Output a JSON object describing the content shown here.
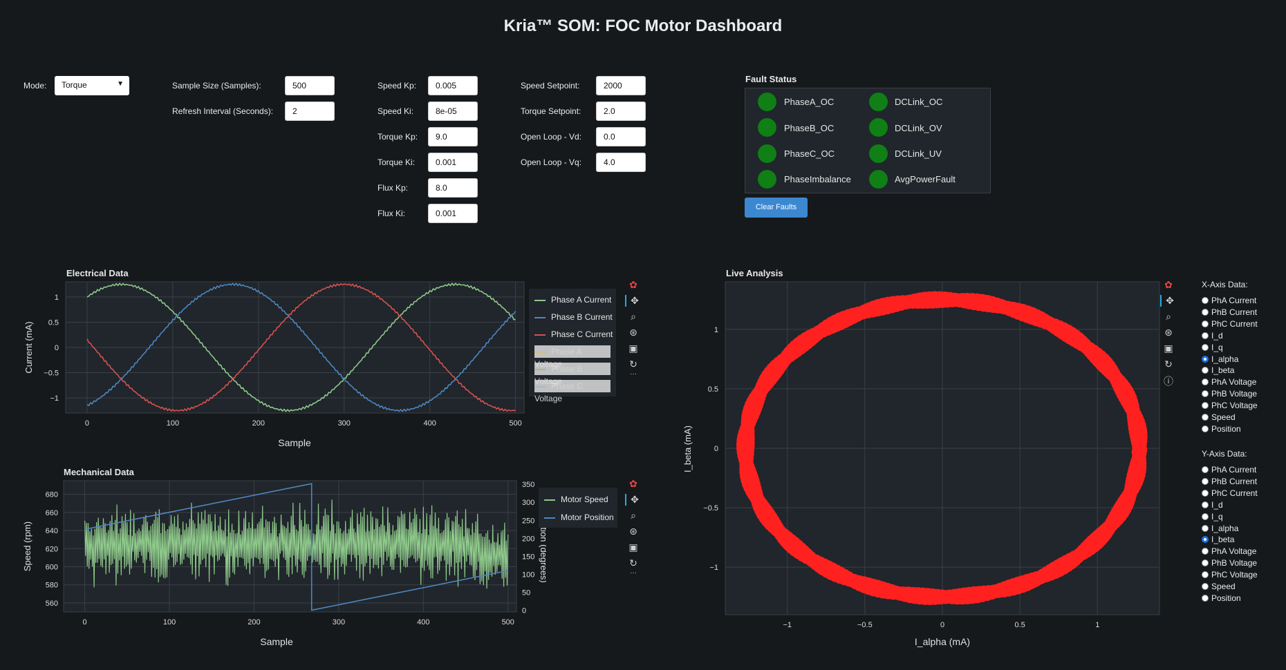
{
  "app": {
    "title": "Kria™ SOM: FOC Motor Dashboard"
  },
  "controls": {
    "mode": {
      "label": "Mode:",
      "value": "Torque"
    },
    "sample_size": {
      "label": "Sample Size (Samples):",
      "value": "500"
    },
    "refresh_interval": {
      "label": "Refresh Interval (Seconds):",
      "value": "2"
    },
    "speed_kp": {
      "label": "Speed Kp:",
      "value": "0.005"
    },
    "speed_ki": {
      "label": "Speed Ki:",
      "value": "8e-05"
    },
    "torque_kp": {
      "label": "Torque Kp:",
      "value": "9.0"
    },
    "torque_ki": {
      "label": "Torque Ki:",
      "value": "0.001"
    },
    "flux_kp": {
      "label": "Flux Kp:",
      "value": "8.0"
    },
    "flux_ki": {
      "label": "Flux Ki:",
      "value": "0.001"
    },
    "speed_setpoint": {
      "label": "Speed Setpoint:",
      "value": "2000"
    },
    "torque_setpoint": {
      "label": "Torque Setpoint:",
      "value": "2.0"
    },
    "open_loop_vd": {
      "label": "Open Loop - Vd:",
      "value": "0.0"
    },
    "open_loop_vq": {
      "label": "Open Loop - Vq:",
      "value": "4.0"
    }
  },
  "faults": {
    "title": "Fault Status",
    "items": [
      "PhaseA_OC",
      "DCLink_OC",
      "PhaseB_OC",
      "DCLink_OV",
      "PhaseC_OC",
      "DCLink_UV",
      "PhaseImbalance",
      "AvgPowerFault"
    ],
    "status_color": "#0f7f16",
    "clear_label": "Clear Faults"
  },
  "panels": {
    "electrical": "Electrical Data",
    "mechanical": "Mechanical Data",
    "live": "Live Analysis"
  },
  "colors": {
    "green": "#8fc98b",
    "blue": "#4f86c0",
    "red": "#d95050",
    "scatter": "#ff2020"
  },
  "chart_data": [
    {
      "type": "line",
      "title": "Electrical Data",
      "xlabel": "Sample",
      "ylabel": "Current (mA)",
      "xlim": [
        -25,
        510
      ],
      "ylim": [
        -1.3,
        1.3
      ],
      "xticks": [
        "0",
        "100",
        "200",
        "300",
        "400",
        "500"
      ],
      "yticks": [
        "−1",
        "−0.5",
        "0",
        "0.5",
        "1"
      ],
      "sine": {
        "amplitude": 1.25,
        "period_samples": 390,
        "phase_a_peak_sample": 40
      },
      "series": [
        {
          "name": "Phase A Current",
          "phase_offset_deg": 0
        },
        {
          "name": "Phase B Current",
          "phase_offset_deg": -120
        },
        {
          "name": "Phase C Current",
          "phase_offset_deg": 120
        },
        {
          "name": "Phase A Voltage",
          "muted": true
        },
        {
          "name": "Phase B Voltage",
          "muted": true
        },
        {
          "name": "Phase C Voltage",
          "muted": true
        }
      ]
    },
    {
      "type": "line",
      "title": "Mechanical Data",
      "xlabel": "Sample",
      "ylabel": "Speed (rpm)",
      "y2label": "Position (degrees)",
      "xlim": [
        -25,
        510
      ],
      "ylim": [
        550,
        695
      ],
      "y2lim": [
        -5,
        360
      ],
      "xticks": [
        "0",
        "100",
        "200",
        "300",
        "400",
        "500"
      ],
      "yticks": [
        "560",
        "580",
        "600",
        "620",
        "640",
        "660",
        "680"
      ],
      "y2ticks": [
        "0",
        "50",
        "100",
        "150",
        "200",
        "250",
        "300",
        "350"
      ],
      "series": [
        {
          "name": "Motor Speed",
          "mean_rpm": 625,
          "noise_rpm": 30
        },
        {
          "name": "Motor Position",
          "points": [
            [
              0,
              225
            ],
            [
              268,
              352
            ],
            [
              268,
              0
            ],
            [
              500,
              110
            ]
          ]
        }
      ]
    },
    {
      "type": "scatter",
      "title": "Live Analysis",
      "xlabel": "I_alpha (mA)",
      "ylabel": "I_beta (mA)",
      "xlim": [
        -1.4,
        1.4
      ],
      "ylim": [
        -1.4,
        1.4
      ],
      "xticks": [
        "−1",
        "−0.5",
        "0",
        "0.5",
        "1"
      ],
      "yticks": [
        "−1",
        "−0.5",
        "0",
        "0.5",
        "1"
      ],
      "ellipse": {
        "radius_x": 1.27,
        "radius_y": 1.25,
        "points": 500
      }
    }
  ],
  "axis_selector": {
    "x_title": "X-Axis Data:",
    "y_title": "Y-Axis Data:",
    "options": [
      "PhA Current",
      "PhB Current",
      "PhC Current",
      "I_d",
      "I_q",
      "I_alpha",
      "I_beta",
      "PhA Voltage",
      "PhB Voltage",
      "PhC Voltage",
      "Speed",
      "Position"
    ],
    "x_selected": "I_alpha",
    "y_selected": "I_beta"
  },
  "toolbar_icons": [
    "bokeh-logo-icon",
    "pan-icon",
    "box-zoom-icon",
    "wheel-zoom-icon",
    "save-icon",
    "reset-icon",
    "more-icon"
  ]
}
